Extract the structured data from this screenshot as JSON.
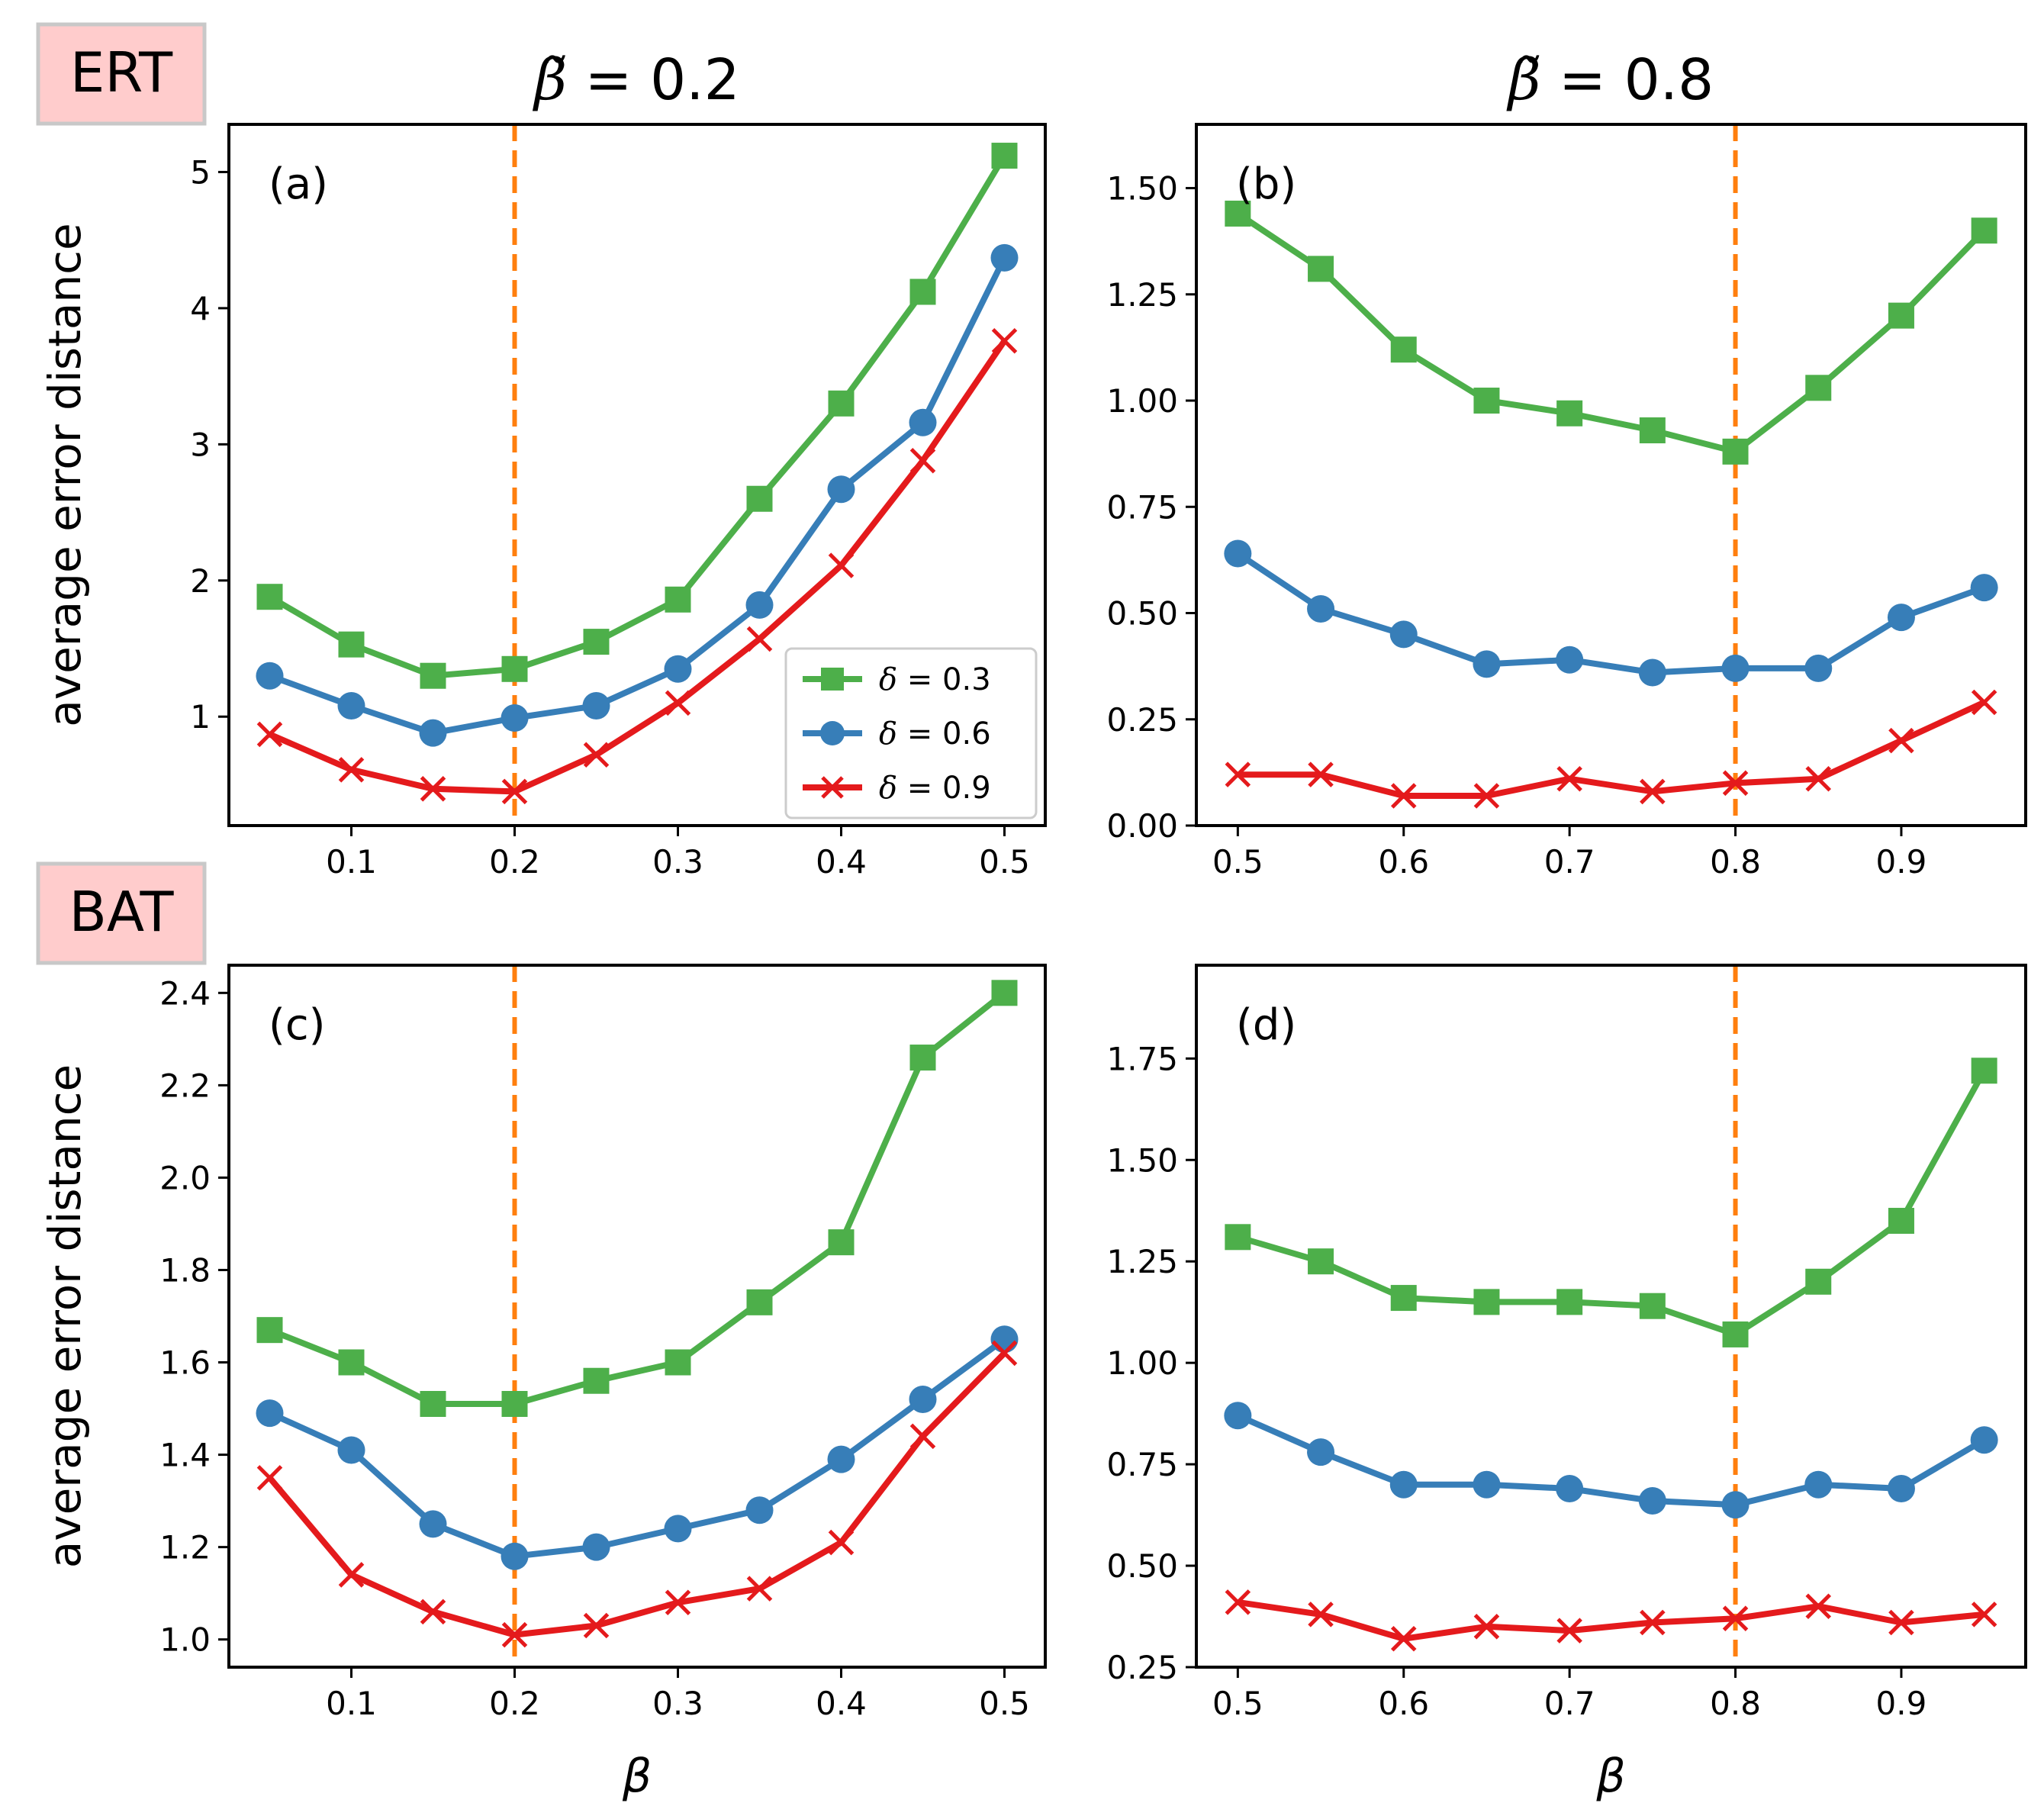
{
  "figure": {
    "column_titles": [
      "β̃ = 0.2",
      "β̃ = 0.8"
    ],
    "row_tags": [
      "ERT",
      "BAT"
    ],
    "tag_color": "#ffcccc",
    "dashed_line_color": "#ff7f0e"
  },
  "chart_data": [
    {
      "type": "line",
      "panel": "(a)",
      "method": "ERT",
      "beta_tilde": 0.2,
      "title": "β̃ = 0.2",
      "xlabel": "",
      "ylabel": "average error distance",
      "x": [
        0.05,
        0.1,
        0.15,
        0.2,
        0.25,
        0.3,
        0.35,
        0.4,
        0.45,
        0.5
      ],
      "xlim": [
        0.025,
        0.525
      ],
      "ylim": [
        0.2,
        5.35
      ],
      "xticks": [
        0.1,
        0.2,
        0.3,
        0.4,
        0.5
      ],
      "xtick_labels": [
        "0.1",
        "0.2",
        "0.3",
        "0.4",
        "0.5"
      ],
      "yticks": [
        1,
        2,
        3,
        4,
        5
      ],
      "ytick_labels": [
        "1",
        "2",
        "3",
        "4",
        "5"
      ],
      "vline": 0.2,
      "legend": true,
      "legend_position": "lower-right",
      "series": [
        {
          "name": "δ = 0.3",
          "color": "#4daf4a",
          "marker": "square",
          "values": [
            1.88,
            1.53,
            1.3,
            1.35,
            1.55,
            1.86,
            2.6,
            3.3,
            4.12,
            5.12
          ]
        },
        {
          "name": "δ = 0.6",
          "color": "#377eb8",
          "marker": "circle",
          "values": [
            1.3,
            1.08,
            0.88,
            0.99,
            1.08,
            1.35,
            1.82,
            2.67,
            3.16,
            4.37
          ]
        },
        {
          "name": "δ = 0.9",
          "color": "#e41a1c",
          "marker": "x",
          "values": [
            0.87,
            0.61,
            0.47,
            0.45,
            0.72,
            1.1,
            1.57,
            2.11,
            2.88,
            3.76
          ]
        }
      ]
    },
    {
      "type": "line",
      "panel": "(b)",
      "method": "ERT",
      "beta_tilde": 0.8,
      "title": "β̃ = 0.8",
      "xlabel": "",
      "ylabel": "",
      "x": [
        0.5,
        0.55,
        0.6,
        0.65,
        0.7,
        0.75,
        0.8,
        0.85,
        0.9,
        0.95
      ],
      "xlim": [
        0.475,
        0.975
      ],
      "ylim": [
        0.0,
        1.65
      ],
      "xticks": [
        0.5,
        0.6,
        0.7,
        0.8,
        0.9
      ],
      "xtick_labels": [
        "0.5",
        "0.6",
        "0.7",
        "0.8",
        "0.9"
      ],
      "yticks": [
        0.0,
        0.25,
        0.5,
        0.75,
        1.0,
        1.25,
        1.5
      ],
      "ytick_labels": [
        "0.00",
        "0.25",
        "0.50",
        "0.75",
        "1.00",
        "1.25",
        "1.50"
      ],
      "vline": 0.8,
      "legend": false,
      "series": [
        {
          "name": "δ = 0.3",
          "color": "#4daf4a",
          "marker": "square",
          "values": [
            1.44,
            1.31,
            1.12,
            1.0,
            0.97,
            0.93,
            0.88,
            1.03,
            1.2,
            1.4
          ]
        },
        {
          "name": "δ = 0.6",
          "color": "#377eb8",
          "marker": "circle",
          "values": [
            0.64,
            0.51,
            0.45,
            0.38,
            0.39,
            0.36,
            0.37,
            0.37,
            0.49,
            0.56
          ]
        },
        {
          "name": "δ = 0.9",
          "color": "#e41a1c",
          "marker": "x",
          "values": [
            0.12,
            0.12,
            0.07,
            0.07,
            0.11,
            0.08,
            0.1,
            0.11,
            0.2,
            0.29
          ]
        }
      ]
    },
    {
      "type": "line",
      "panel": "(c)",
      "method": "BAT",
      "beta_tilde": 0.2,
      "title": "",
      "xlabel": "β",
      "ylabel": "average error distance",
      "x": [
        0.05,
        0.1,
        0.15,
        0.2,
        0.25,
        0.3,
        0.35,
        0.4,
        0.45,
        0.5
      ],
      "xlim": [
        0.025,
        0.525
      ],
      "ylim": [
        0.94,
        2.46
      ],
      "xticks": [
        0.1,
        0.2,
        0.3,
        0.4,
        0.5
      ],
      "xtick_labels": [
        "0.1",
        "0.2",
        "0.3",
        "0.4",
        "0.5"
      ],
      "yticks": [
        1.0,
        1.2,
        1.4,
        1.6,
        1.8,
        2.0,
        2.2,
        2.4
      ],
      "ytick_labels": [
        "1.0",
        "1.2",
        "1.4",
        "1.6",
        "1.8",
        "2.0",
        "2.2",
        "2.4"
      ],
      "vline": 0.2,
      "legend": false,
      "series": [
        {
          "name": "δ = 0.3",
          "color": "#4daf4a",
          "marker": "square",
          "values": [
            1.67,
            1.6,
            1.51,
            1.51,
            1.56,
            1.6,
            1.73,
            1.86,
            2.26,
            2.4
          ]
        },
        {
          "name": "δ = 0.6",
          "color": "#377eb8",
          "marker": "circle",
          "values": [
            1.49,
            1.41,
            1.25,
            1.18,
            1.2,
            1.24,
            1.28,
            1.39,
            1.52,
            1.65
          ]
        },
        {
          "name": "δ = 0.9",
          "color": "#e41a1c",
          "marker": "x",
          "values": [
            1.35,
            1.14,
            1.06,
            1.01,
            1.03,
            1.08,
            1.11,
            1.21,
            1.44,
            1.62
          ]
        }
      ]
    },
    {
      "type": "line",
      "panel": "(d)",
      "method": "BAT",
      "beta_tilde": 0.8,
      "title": "",
      "xlabel": "β",
      "ylabel": "",
      "x": [
        0.5,
        0.55,
        0.6,
        0.65,
        0.7,
        0.75,
        0.8,
        0.85,
        0.9,
        0.95
      ],
      "xlim": [
        0.475,
        0.975
      ],
      "ylim": [
        0.25,
        1.98
      ],
      "xticks": [
        0.5,
        0.6,
        0.7,
        0.8,
        0.9
      ],
      "xtick_labels": [
        "0.5",
        "0.6",
        "0.7",
        "0.8",
        "0.9"
      ],
      "yticks": [
        0.25,
        0.5,
        0.75,
        1.0,
        1.25,
        1.5,
        1.75
      ],
      "ytick_labels": [
        "0.25",
        "0.50",
        "0.75",
        "1.00",
        "1.25",
        "1.50",
        "1.75"
      ],
      "vline": 0.8,
      "legend": false,
      "series": [
        {
          "name": "δ = 0.3",
          "color": "#4daf4a",
          "marker": "square",
          "values": [
            1.31,
            1.25,
            1.16,
            1.15,
            1.15,
            1.14,
            1.07,
            1.2,
            1.35,
            1.72
          ]
        },
        {
          "name": "δ = 0.6",
          "color": "#377eb8",
          "marker": "circle",
          "values": [
            0.87,
            0.78,
            0.7,
            0.7,
            0.69,
            0.66,
            0.65,
            0.7,
            0.69,
            0.81
          ]
        },
        {
          "name": "δ = 0.9",
          "color": "#e41a1c",
          "marker": "x",
          "values": [
            0.41,
            0.38,
            0.32,
            0.35,
            0.34,
            0.36,
            0.37,
            0.4,
            0.36,
            0.38
          ]
        }
      ]
    }
  ]
}
